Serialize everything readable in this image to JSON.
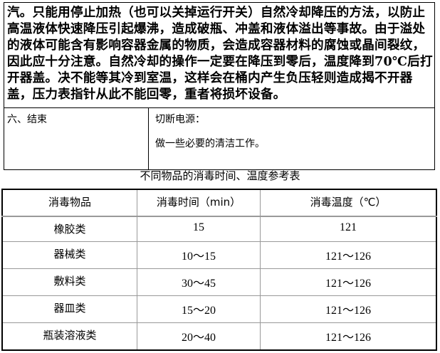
{
  "paragraph": {
    "lines": [
      "汽。只能用停止加热（也可以关掉运行开关）自然冷却降压的方法，以防止",
      "高温液体快速降压引起爆沸，造成破瓶、冲盖和液体溢出等事故。由于溢处",
      "的液体可能含有影响容器金属的物质，会造成容器材料的腐蚀或晶间裂纹，",
      "因此应十分注意。自然冷却的操作一定要在降压到零后，温度降到70℃后打",
      "开器盖。决不能等其冷到室温，这样会在桶内产生负压轻则造成揭不开器",
      "盖，压力表指针从此不能回零，重者将损坏设备。"
    ]
  },
  "section": {
    "label": "六、结束",
    "steps": [
      "切断电源：",
      "做一些必要的清洁工作。"
    ]
  },
  "table_title": "不同物品的消毒时间、温度参考表",
  "table": {
    "headers": [
      "消毒物品",
      "消毒时间（min）",
      "消毒温度（℃）"
    ],
    "rows": [
      [
        "橡胶类",
        "15",
        "121"
      ],
      [
        "器械类",
        "10～15",
        "121～126"
      ],
      [
        "敷料类",
        "30～45",
        "121～126"
      ],
      [
        "器皿类",
        "15～20",
        "121～126"
      ],
      [
        "瓶装溶液类",
        "20～40",
        "121～126"
      ]
    ]
  }
}
